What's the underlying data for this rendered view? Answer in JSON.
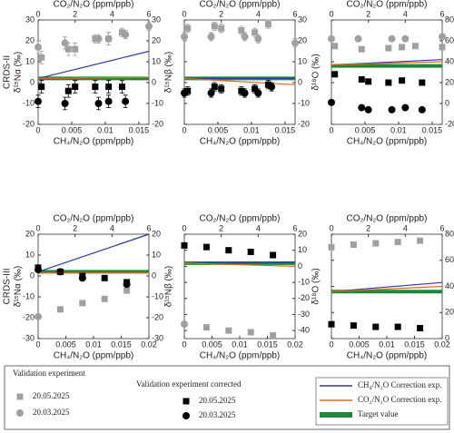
{
  "chart_data": [
    {
      "type": "scatter",
      "row_label": "CRDS-II",
      "ylabel": "δ¹⁵Nα (‰)",
      "xlabel": "CH₄/N₂O (ppm/ppb)",
      "x2label": "CO₂/N₂O (ppm/ppb)",
      "xlim": [
        0,
        0.0165
      ],
      "xticks": [
        0,
        0.005,
        0.01,
        0.015
      ],
      "x2lim": [
        0,
        6
      ],
      "x2ticks": [
        0,
        2,
        4,
        6
      ],
      "ylim": [
        -20,
        30
      ],
      "yticks": [
        -20,
        -10,
        0,
        10,
        20,
        30
      ],
      "series": [
        {
          "marker": "line",
          "color": "#2b3a9e",
          "x": [
            0,
            0.0165
          ],
          "values": [
            2,
            15
          ]
        },
        {
          "marker": "line",
          "color": "#e06a1b",
          "x": [
            0,
            0.0165
          ],
          "values": [
            2,
            2.5
          ]
        },
        {
          "marker": "band",
          "color": "#1a8a3a",
          "x": [
            0,
            0.0165
          ],
          "values": [
            2,
            2
          ]
        },
        {
          "marker": "square",
          "color": "#a0a0a0",
          "x": [
            0.0005,
            0.0045,
            0.0055,
            0.0085,
            0.0105,
            0.0125
          ],
          "values": [
            12,
            16,
            16,
            21,
            21,
            24
          ],
          "errors": [
            3,
            3,
            3,
            2,
            3,
            2
          ]
        },
        {
          "marker": "circle",
          "color": "#a0a0a0",
          "x": [
            0,
            0.004,
            0.009,
            0.0105,
            0.013,
            0.0165
          ],
          "values": [
            17,
            19,
            21,
            21,
            23,
            27
          ],
          "errors": [
            3,
            3,
            2,
            3,
            2,
            2
          ]
        },
        {
          "marker": "square",
          "color": "#000000",
          "x": [
            0.0005,
            0.0045,
            0.0055,
            0.0085,
            0.0105,
            0.0125
          ],
          "values": [
            -2,
            -4,
            -2,
            -2,
            -2,
            -2
          ],
          "errors": [
            3,
            3,
            3,
            3,
            3,
            3
          ]
        },
        {
          "marker": "circle",
          "color": "#000000",
          "x": [
            0,
            0.004,
            0.009,
            0.0105,
            0.013
          ],
          "values": [
            -9,
            -10,
            -10,
            -9,
            -9
          ],
          "errors": [
            3,
            3,
            3,
            3,
            3
          ]
        }
      ]
    },
    {
      "type": "scatter",
      "ylabel": "δ¹⁵Nβ (‰)",
      "xlabel": "CH₄/N₂O (ppm/ppb)",
      "x2label": "CO₂/N₂O (ppm/ppb)",
      "xlim": [
        0,
        0.0165
      ],
      "xticks": [
        0,
        0.005,
        0.01,
        0.015
      ],
      "x2lim": [
        0,
        6
      ],
      "x2ticks": [
        0,
        2,
        4,
        6
      ],
      "ylim": [
        -20,
        30
      ],
      "yticks": [
        -20,
        -10,
        0,
        10,
        20,
        30
      ],
      "series": [
        {
          "marker": "line",
          "color": "#2b3a9e",
          "x": [
            0,
            0.0165
          ],
          "values": [
            2,
            2
          ]
        },
        {
          "marker": "line",
          "color": "#e06a1b",
          "x": [
            0,
            0.0165
          ],
          "values": [
            2,
            -1
          ]
        },
        {
          "marker": "band",
          "color": "#1a8a3a",
          "x": [
            0,
            0.0165
          ],
          "values": [
            2,
            2
          ]
        },
        {
          "marker": "square",
          "color": "#a0a0a0",
          "x": [
            0.0005,
            0.0045,
            0.0055,
            0.0085,
            0.0105,
            0.0125
          ],
          "values": [
            26,
            27,
            26,
            25,
            24,
            28
          ],
          "errors": [
            2,
            2,
            2,
            2,
            2,
            2
          ]
        },
        {
          "marker": "circle",
          "color": "#a0a0a0",
          "x": [
            0,
            0.004,
            0.009,
            0.011,
            0.0165
          ],
          "values": [
            22,
            22,
            22,
            21,
            19
          ],
          "errors": [
            2,
            2,
            2,
            2,
            2
          ]
        },
        {
          "marker": "square",
          "color": "#000000",
          "x": [
            0.0005,
            0.0045,
            0.0055,
            0.0085,
            0.0105,
            0.0125
          ],
          "values": [
            -4,
            -2,
            -3,
            -4,
            -3,
            -1
          ],
          "errors": [
            2,
            2,
            2,
            2,
            2,
            2
          ]
        },
        {
          "marker": "circle",
          "color": "#000000",
          "x": [
            0,
            0.004,
            0.009,
            0.011,
            0.013
          ],
          "values": [
            -5,
            -5,
            -5,
            -5,
            -2
          ],
          "errors": [
            2,
            2,
            2,
            2,
            2
          ]
        }
      ]
    },
    {
      "type": "scatter",
      "ylabel": "δ¹⁸O (‰)",
      "xlabel": "CH₄/N₂O (ppm/ppb)",
      "x2label": "CO₂/N₂O (ppm/ppb)",
      "xlim": [
        0,
        0.0165
      ],
      "xticks": [
        0,
        0.005,
        0.01,
        0.015
      ],
      "x2lim": [
        0,
        6
      ],
      "x2ticks": [
        0,
        2,
        4,
        6
      ],
      "ylim": [
        -20,
        80
      ],
      "yticks": [
        -20,
        0,
        20,
        40,
        60,
        80
      ],
      "series": [
        {
          "marker": "line",
          "color": "#2b3a9e",
          "x": [
            0,
            0.0165
          ],
          "values": [
            37,
            42
          ]
        },
        {
          "marker": "line",
          "color": "#e06a1b",
          "x": [
            0,
            0.0165
          ],
          "values": [
            37,
            40
          ]
        },
        {
          "marker": "band",
          "color": "#1a8a3a",
          "x": [
            0,
            0.0165
          ],
          "values": [
            36,
            36
          ]
        },
        {
          "marker": "square",
          "color": "#a0a0a0",
          "x": [
            0.0005,
            0.0045,
            0.0085,
            0.0105,
            0.0125,
            0.0165
          ],
          "values": [
            55,
            52,
            53,
            54,
            55,
            54
          ]
        },
        {
          "marker": "circle",
          "color": "#a0a0a0",
          "x": [
            0,
            0.004,
            0.009,
            0.011,
            0.0165
          ],
          "values": [
            62,
            62,
            62,
            62,
            64
          ]
        },
        {
          "marker": "square",
          "color": "#000000",
          "x": [
            0.0005,
            0.0045,
            0.0055,
            0.0085,
            0.0105,
            0.0135
          ],
          "values": [
            28,
            23,
            21,
            20,
            22,
            20
          ]
        },
        {
          "marker": "circle",
          "color": "#000000",
          "x": [
            0,
            0.0045,
            0.0055,
            0.009,
            0.011,
            0.0135
          ],
          "values": [
            1,
            -4,
            -6,
            -6,
            -4,
            -6
          ]
        }
      ]
    },
    {
      "type": "scatter",
      "row_label": "CRDS-III",
      "ylabel": "δ¹⁵Nα (‰)",
      "xlabel": "CH₄/N₂O (ppm/ppb)",
      "x2label": "CO₂/N₂O (ppm/ppb)",
      "xlim": [
        0,
        0.02
      ],
      "xticks": [
        0,
        0.005,
        0.01,
        0.015,
        0.02
      ],
      "x2lim": [
        0,
        6
      ],
      "x2ticks": [
        0,
        2,
        4,
        6
      ],
      "ylim": [
        -30,
        20
      ],
      "yticks": [
        -30,
        -20,
        -10,
        0,
        10,
        20
      ],
      "series": [
        {
          "marker": "line",
          "color": "#2b3a9e",
          "x": [
            0,
            0.02
          ],
          "values": [
            2,
            20
          ]
        },
        {
          "marker": "line",
          "color": "#e06a1b",
          "x": [
            0,
            0.02
          ],
          "values": [
            1.5,
            1.5
          ]
        },
        {
          "marker": "band",
          "color": "#1a8a3a",
          "x": [
            0,
            0.02
          ],
          "values": [
            2,
            2
          ]
        },
        {
          "marker": "square",
          "color": "#a0a0a0",
          "x": [
            0.004,
            0.008,
            0.012,
            0.016
          ],
          "values": [
            -16,
            -13,
            -11,
            -7
          ]
        },
        {
          "marker": "circle",
          "color": "#a0a0a0",
          "x": [
            0
          ],
          "values": [
            -19.5
          ]
        },
        {
          "marker": "square",
          "color": "#000000",
          "x": [
            0,
            0.004,
            0.008,
            0.012,
            0.016
          ],
          "values": [
            4,
            2,
            0,
            -1,
            -3
          ]
        },
        {
          "marker": "circle",
          "color": "#000000",
          "x": [
            0,
            0.004,
            0.008,
            0.016
          ],
          "values": [
            3,
            2,
            -1,
            -4
          ]
        }
      ]
    },
    {
      "type": "scatter",
      "ylabel": "δ¹⁵Nβ (‰)",
      "xlabel": "CH₄/N₂O (ppm/ppb)",
      "x2label": "CO₂/N₂O (ppm/ppb)",
      "xlim": [
        0,
        0.02
      ],
      "xticks": [
        0,
        0.005,
        0.01,
        0.015,
        0.02
      ],
      "x2lim": [
        0,
        6
      ],
      "x2ticks": [
        0,
        2,
        4,
        6
      ],
      "ylim": [
        -45,
        20
      ],
      "yticks": [
        -40,
        -30,
        -20,
        -10,
        0,
        10,
        20
      ],
      "series": [
        {
          "marker": "line",
          "color": "#2b3a9e",
          "x": [
            0,
            0.02
          ],
          "values": [
            2,
            2.5
          ]
        },
        {
          "marker": "line",
          "color": "#e06a1b",
          "x": [
            0,
            0.02
          ],
          "values": [
            2,
            0
          ]
        },
        {
          "marker": "band",
          "color": "#1a8a3a",
          "x": [
            0,
            0.02
          ],
          "values": [
            2,
            2
          ]
        },
        {
          "marker": "square",
          "color": "#a0a0a0",
          "x": [
            0.004,
            0.008,
            0.012,
            0.016
          ],
          "values": [
            -38,
            -40,
            -41,
            -43
          ]
        },
        {
          "marker": "circle",
          "color": "#a0a0a0",
          "x": [
            0
          ],
          "values": [
            -36
          ]
        },
        {
          "marker": "square",
          "color": "#000000",
          "x": [
            0,
            0.004,
            0.008,
            0.012,
            0.016
          ],
          "values": [
            13,
            12,
            10,
            9,
            7
          ]
        }
      ]
    },
    {
      "type": "scatter",
      "ylabel": "δ¹⁸O (‰)",
      "xlabel": "CH₄/N₂O (ppm/ppb)",
      "x2label": "CO₂/N₂O (ppm/ppb)",
      "xlim": [
        0,
        0.02
      ],
      "xticks": [
        0,
        0.005,
        0.01,
        0.015,
        0.02
      ],
      "x2lim": [
        0,
        6
      ],
      "x2ticks": [
        0,
        2,
        4,
        6
      ],
      "ylim": [
        0,
        80
      ],
      "yticks": [
        0,
        20,
        40,
        60,
        80
      ],
      "series": [
        {
          "marker": "line",
          "color": "#2b3a9e",
          "x": [
            0,
            0.02
          ],
          "values": [
            36,
            43
          ]
        },
        {
          "marker": "line",
          "color": "#e06a1b",
          "x": [
            0,
            0.02
          ],
          "values": [
            36,
            40
          ]
        },
        {
          "marker": "band",
          "color": "#1a8a3a",
          "x": [
            0,
            0.02
          ],
          "values": [
            36,
            36
          ]
        },
        {
          "marker": "square",
          "color": "#a0a0a0",
          "x": [
            0,
            0.004,
            0.008,
            0.012,
            0.016
          ],
          "values": [
            70,
            72,
            73,
            74,
            75
          ]
        },
        {
          "marker": "square",
          "color": "#000000",
          "x": [
            0,
            0.004,
            0.008,
            0.012,
            0.016
          ],
          "values": [
            11,
            10,
            9,
            9,
            8
          ]
        }
      ]
    }
  ],
  "legend": {
    "groups": [
      {
        "title": "Validation experiment",
        "entries": [
          {
            "label": "20.05.2025",
            "marker": "square",
            "color": "#a0a0a0"
          },
          {
            "label": "20.03.2025",
            "marker": "circle",
            "color": "#a0a0a0"
          }
        ]
      },
      {
        "title": "Validation experiment corrected",
        "entries": [
          {
            "label": "20.05.2025",
            "marker": "square",
            "color": "#000000"
          },
          {
            "label": "20.03.2025",
            "marker": "circle",
            "color": "#000000"
          }
        ]
      },
      {
        "entries": [
          {
            "label": "CH₄/N₂O Correction exp.",
            "marker": "line",
            "color": "#2b3a9e"
          },
          {
            "label": "CO₂/N₂O Correction exp.",
            "marker": "line",
            "color": "#e06a1b"
          },
          {
            "label": "Target value",
            "marker": "band",
            "color": "#1a8a3a"
          }
        ]
      }
    ]
  }
}
